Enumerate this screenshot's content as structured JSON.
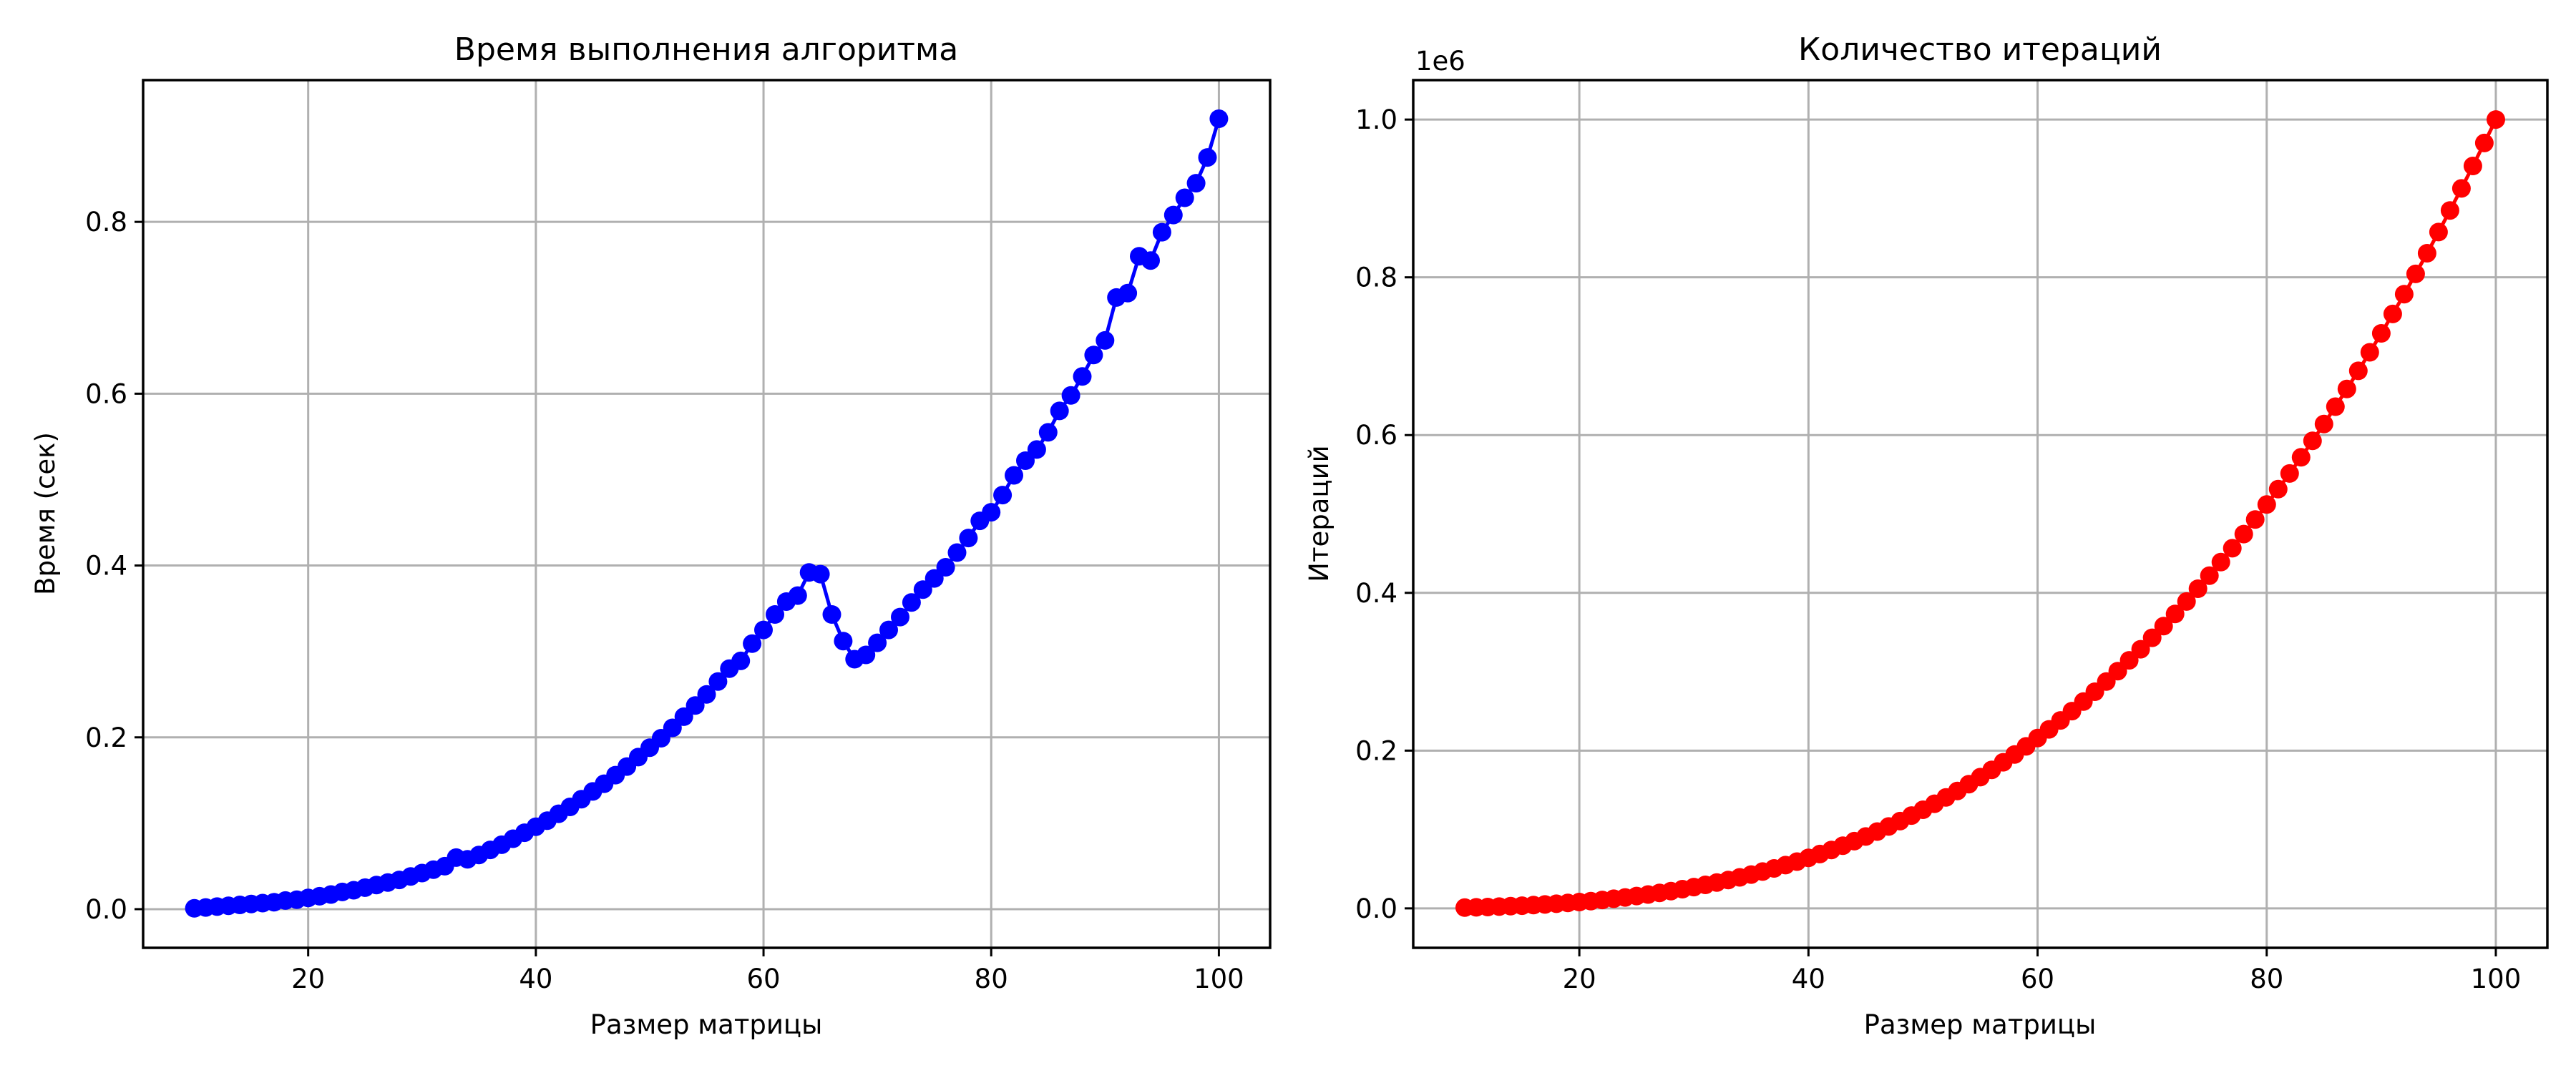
{
  "chart_data": [
    {
      "type": "line",
      "title": "Время выполнения алгоритма",
      "xlabel": "Размер матрицы",
      "ylabel": "Время (сек)",
      "xlim": [
        5.5,
        104.5
      ],
      "ylim": [
        -0.045,
        0.965
      ],
      "xticks": [
        20,
        40,
        60,
        80,
        100
      ],
      "xtick_labels": [
        "20",
        "40",
        "60",
        "80",
        "100"
      ],
      "yticks": [
        0.0,
        0.2,
        0.4,
        0.6,
        0.8
      ],
      "ytick_labels": [
        "0.0",
        "0.2",
        "0.4",
        "0.6",
        "0.8"
      ],
      "grid": true,
      "series": [
        {
          "color": "#0000ff",
          "marker": "circle",
          "x": [
            10,
            11,
            12,
            13,
            14,
            15,
            16,
            17,
            18,
            19,
            20,
            21,
            22,
            23,
            24,
            25,
            26,
            27,
            28,
            29,
            30,
            31,
            32,
            33,
            34,
            35,
            36,
            37,
            38,
            39,
            40,
            41,
            42,
            43,
            44,
            45,
            46,
            47,
            48,
            49,
            50,
            51,
            52,
            53,
            54,
            55,
            56,
            57,
            58,
            59,
            60,
            61,
            62,
            63,
            64,
            65,
            66,
            67,
            68,
            69,
            70,
            71,
            72,
            73,
            74,
            75,
            76,
            77,
            78,
            79,
            80,
            81,
            82,
            83,
            84,
            85,
            86,
            87,
            88,
            89,
            90,
            91,
            92,
            93,
            94,
            95,
            96,
            97,
            98,
            99,
            100
          ],
          "y": [
            0.001,
            0.002,
            0.003,
            0.004,
            0.005,
            0.006,
            0.007,
            0.008,
            0.01,
            0.011,
            0.013,
            0.015,
            0.017,
            0.02,
            0.022,
            0.025,
            0.028,
            0.031,
            0.034,
            0.038,
            0.042,
            0.046,
            0.05,
            0.06,
            0.058,
            0.063,
            0.069,
            0.075,
            0.082,
            0.089,
            0.096,
            0.103,
            0.111,
            0.119,
            0.128,
            0.137,
            0.146,
            0.156,
            0.166,
            0.177,
            0.188,
            0.199,
            0.211,
            0.224,
            0.237,
            0.25,
            0.265,
            0.28,
            0.289,
            0.309,
            0.325,
            0.343,
            0.358,
            0.365,
            0.392,
            0.39,
            0.343,
            0.312,
            0.291,
            0.296,
            0.31,
            0.325,
            0.34,
            0.357,
            0.372,
            0.385,
            0.398,
            0.415,
            0.432,
            0.452,
            0.462,
            0.482,
            0.505,
            0.522,
            0.535,
            0.555,
            0.58,
            0.598,
            0.62,
            0.645,
            0.662,
            0.712,
            0.717,
            0.76,
            0.755,
            0.788,
            0.808,
            0.828,
            0.845,
            0.875,
            0.92
          ]
        }
      ]
    },
    {
      "type": "line",
      "title": "Количество итераций",
      "xlabel": "Размер матрицы",
      "ylabel": "Итераций",
      "offset_text": "1e6",
      "xlim": [
        5.5,
        104.5
      ],
      "ylim": [
        -0.05,
        1.05
      ],
      "xticks": [
        20,
        40,
        60,
        80,
        100
      ],
      "xtick_labels": [
        "20",
        "40",
        "60",
        "80",
        "100"
      ],
      "yticks": [
        0.0,
        0.2,
        0.4,
        0.6,
        0.8,
        1.0
      ],
      "ytick_labels": [
        "0.0",
        "0.2",
        "0.4",
        "0.6",
        "0.8",
        "1.0"
      ],
      "grid": true,
      "series": [
        {
          "color": "#ff0000",
          "marker": "circle",
          "x": [
            10,
            11,
            12,
            13,
            14,
            15,
            16,
            17,
            18,
            19,
            20,
            21,
            22,
            23,
            24,
            25,
            26,
            27,
            28,
            29,
            30,
            31,
            32,
            33,
            34,
            35,
            36,
            37,
            38,
            39,
            40,
            41,
            42,
            43,
            44,
            45,
            46,
            47,
            48,
            49,
            50,
            51,
            52,
            53,
            54,
            55,
            56,
            57,
            58,
            59,
            60,
            61,
            62,
            63,
            64,
            65,
            66,
            67,
            68,
            69,
            70,
            71,
            72,
            73,
            74,
            75,
            76,
            77,
            78,
            79,
            80,
            81,
            82,
            83,
            84,
            85,
            86,
            87,
            88,
            89,
            90,
            91,
            92,
            93,
            94,
            95,
            96,
            97,
            98,
            99,
            100
          ],
          "y": [
            0.001,
            0.001331,
            0.001728,
            0.002197,
            0.002744,
            0.003375,
            0.004096,
            0.004913,
            0.005832,
            0.006859,
            0.008,
            0.009261,
            0.010648,
            0.012167,
            0.013824,
            0.015625,
            0.017576,
            0.019683,
            0.021952,
            0.024389,
            0.027,
            0.029791,
            0.032768,
            0.035937,
            0.039304,
            0.042875,
            0.046656,
            0.050653,
            0.054872,
            0.059319,
            0.064,
            0.068921,
            0.074088,
            0.079507,
            0.085184,
            0.091125,
            0.097336,
            0.103823,
            0.110592,
            0.117649,
            0.125,
            0.132651,
            0.140608,
            0.148877,
            0.157464,
            0.166375,
            0.175616,
            0.185193,
            0.195112,
            0.205379,
            0.216,
            0.226981,
            0.238328,
            0.250047,
            0.262144,
            0.274625,
            0.287496,
            0.300763,
            0.314432,
            0.328509,
            0.343,
            0.357911,
            0.373248,
            0.389017,
            0.405224,
            0.421875,
            0.438976,
            0.456533,
            0.474552,
            0.493039,
            0.512,
            0.531441,
            0.551368,
            0.571787,
            0.592704,
            0.614125,
            0.636056,
            0.658503,
            0.681472,
            0.704969,
            0.729,
            0.753571,
            0.778688,
            0.804357,
            0.830584,
            0.857375,
            0.884736,
            0.912673,
            0.941192,
            0.970299,
            1.0
          ]
        }
      ]
    }
  ]
}
